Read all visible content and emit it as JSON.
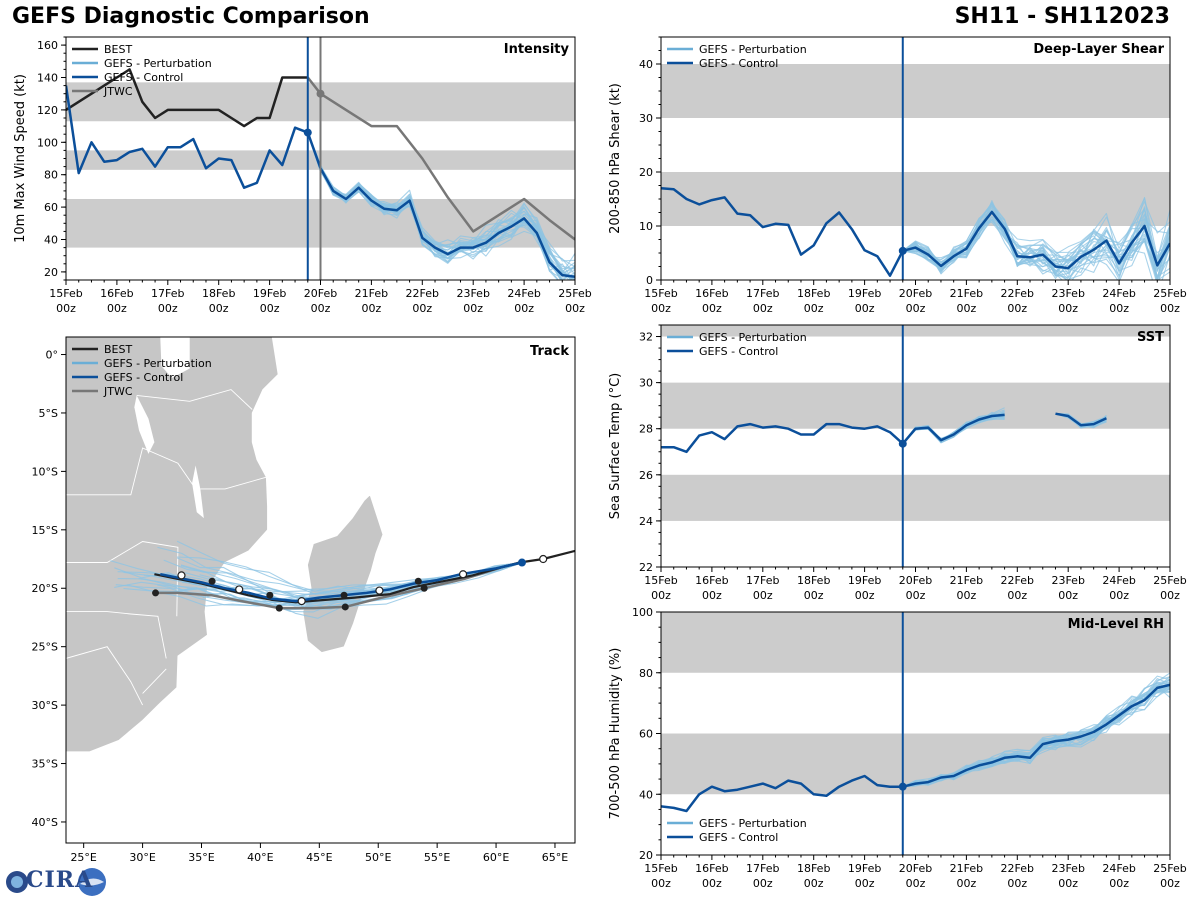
{
  "header": {
    "title_left": "GEFS Diagnostic Comparison",
    "title_right": "SH11 - SH112023"
  },
  "logo": {
    "text": "CIRA"
  },
  "colors": {
    "best": "#222222",
    "perturbation": "#8ec4e3",
    "perturbation_legend": "#6aaed6",
    "control": "#0b4f9a",
    "jtwc": "#777777",
    "band": "#cccccc",
    "land": "#c6c6c6"
  },
  "time_axis": {
    "ticks": [
      "15Feb",
      "16Feb",
      "17Feb",
      "18Feb",
      "19Feb",
      "20Feb",
      "21Feb",
      "22Feb",
      "23Feb",
      "24Feb",
      "25Feb"
    ],
    "sub": "00z",
    "init_day": 4.75,
    "jtwc_day": 5.0
  },
  "chart_data": [
    {
      "id": "intensity",
      "type": "line",
      "title": "Intensity",
      "ylabel": "10m Max Wind Speed (kt)",
      "xlim": [
        0,
        10
      ],
      "ylim": [
        15,
        165
      ],
      "yticks": [
        20,
        40,
        60,
        80,
        100,
        120,
        140,
        160
      ],
      "bands": [
        [
          35,
          65
        ],
        [
          83,
          95
        ],
        [
          113,
          137
        ]
      ],
      "legend": [
        "BEST",
        "GEFS - Perturbation",
        "GEFS - Control",
        "JTWC"
      ],
      "best": {
        "x": [
          0,
          0.25,
          0.5,
          0.75,
          1,
          1.25,
          1.5,
          1.75,
          2,
          2.25,
          2.5,
          2.75,
          3,
          3.25,
          3.5,
          3.75,
          4,
          4.25,
          4.5,
          4.75
        ],
        "y": [
          120,
          125,
          130,
          135,
          140,
          145,
          125,
          115,
          120,
          120,
          120,
          120,
          120,
          115,
          110,
          115,
          115,
          140,
          140,
          140
        ]
      },
      "control": {
        "x": [
          0,
          0.25,
          0.5,
          0.75,
          1,
          1.25,
          1.5,
          1.75,
          2,
          2.25,
          2.5,
          2.75,
          3,
          3.25,
          3.5,
          3.75,
          4,
          4.25,
          4.5,
          4.75
        ],
        "y": [
          135,
          81,
          100,
          88,
          89,
          94,
          96,
          85,
          97,
          97,
          102,
          84,
          90,
          89,
          72,
          75,
          95,
          86,
          109,
          106
        ]
      },
      "control_fc": {
        "x": [
          4.75,
          5,
          5.25,
          5.5,
          5.75,
          6,
          6.25,
          6.5,
          6.75,
          7,
          7.25,
          7.5,
          7.75,
          8,
          8.25,
          8.5,
          8.75,
          9,
          9.25,
          9.5,
          9.75,
          10
        ],
        "y": [
          106,
          84,
          70,
          65,
          72,
          64,
          59,
          58,
          64,
          41,
          35,
          31,
          35,
          35,
          38,
          44,
          48,
          53,
          44,
          26,
          18,
          17
        ]
      },
      "jtwc": {
        "x": [
          4.75,
          5,
          5.5,
          6,
          6.5,
          7,
          7.5,
          8,
          8.5,
          9,
          9.5,
          10
        ],
        "y": [
          140,
          130,
          120,
          110,
          110,
          90,
          66,
          45,
          55,
          65,
          52,
          40
        ]
      }
    },
    {
      "id": "shear",
      "type": "line",
      "title": "Deep-Layer Shear",
      "ylabel": "200-850 hPa Shear (kt)",
      "xlim": [
        0,
        10
      ],
      "ylim": [
        0,
        45
      ],
      "yticks": [
        0,
        10,
        20,
        30,
        40
      ],
      "bands": [
        [
          10,
          20
        ],
        [
          30,
          40
        ]
      ],
      "legend": [
        "GEFS - Perturbation",
        "GEFS - Control"
      ],
      "control": {
        "x": [
          0,
          0.25,
          0.5,
          0.75,
          1,
          1.25,
          1.5,
          1.75,
          2,
          2.25,
          2.5,
          2.75,
          3,
          3.25,
          3.5,
          3.75,
          4,
          4.25,
          4.5,
          4.75
        ],
        "y": [
          17,
          16.8,
          15,
          14,
          14.8,
          15.3,
          12.3,
          12,
          9.8,
          10.4,
          10.2,
          4.7,
          6.4,
          10.5,
          12.5,
          9.4,
          5.5,
          4.4,
          0.8,
          5.4
        ]
      },
      "control_fc": {
        "x": [
          4.75,
          5,
          5.25,
          5.5,
          5.75,
          6,
          6.25,
          6.5,
          6.75,
          7,
          7.25,
          7.5,
          7.75,
          8,
          8.25,
          8.5,
          8.75,
          9,
          9.25,
          9.5,
          9.75,
          10
        ],
        "y": [
          5.4,
          6,
          4.7,
          2.6,
          4.4,
          5.8,
          9.6,
          12.6,
          9.5,
          4.4,
          4.2,
          4.7,
          2.5,
          2.2,
          4.3,
          5.6,
          7.3,
          3.1,
          6.9,
          10,
          2.7,
          6.8
        ]
      }
    },
    {
      "id": "sst",
      "type": "line",
      "title": "SST",
      "ylabel": "Sea Surface Temp (°C)",
      "xlim": [
        0,
        10
      ],
      "ylim": [
        22,
        32.5
      ],
      "yticks": [
        22,
        24,
        26,
        28,
        30,
        32
      ],
      "bands": [
        [
          24,
          26
        ],
        [
          28,
          30
        ],
        [
          32,
          33
        ]
      ],
      "legend": [
        "GEFS - Perturbation",
        "GEFS - Control"
      ],
      "control": {
        "x": [
          0,
          0.25,
          0.5,
          0.75,
          1,
          1.25,
          1.5,
          1.75,
          2,
          2.25,
          2.5,
          2.75,
          3,
          3.25,
          3.5,
          3.75,
          4,
          4.25,
          4.5,
          4.75
        ],
        "y": [
          27.2,
          27.2,
          27.0,
          27.7,
          27.85,
          27.55,
          28.1,
          28.2,
          28.05,
          28.1,
          28.0,
          27.75,
          27.75,
          28.2,
          28.2,
          28.05,
          28.0,
          28.1,
          27.85,
          27.35
        ]
      },
      "control_fc": {
        "x": [
          4.75,
          5,
          5.25,
          5.5,
          5.75,
          6,
          6.25,
          6.5,
          6.75,
          7
        ],
        "y": [
          27.35,
          28.0,
          28.05,
          27.5,
          27.75,
          28.15,
          28.4,
          28.55,
          28.6,
          null
        ]
      },
      "control_fc2": {
        "x": [
          7.75,
          8,
          8.25,
          8.5,
          8.75,
          9,
          9.25
        ],
        "y": [
          28.65,
          28.55,
          28.15,
          28.2,
          28.45,
          null,
          null
        ]
      }
    },
    {
      "id": "rh",
      "type": "line",
      "title": "Mid-Level RH",
      "ylabel": "700-500 hPa Humidity (%)",
      "xlim": [
        0,
        10
      ],
      "ylim": [
        20,
        100
      ],
      "yticks": [
        20,
        40,
        60,
        80,
        100
      ],
      "bands": [
        [
          40,
          60
        ],
        [
          80,
          100
        ]
      ],
      "legend": [
        "GEFS - Perturbation",
        "GEFS - Control"
      ],
      "control": {
        "x": [
          0,
          0.25,
          0.5,
          0.75,
          1,
          1.25,
          1.5,
          1.75,
          2,
          2.25,
          2.5,
          2.75,
          3,
          3.25,
          3.5,
          3.75,
          4,
          4.25,
          4.5,
          4.75
        ],
        "y": [
          36,
          35.5,
          34.5,
          40,
          42.5,
          41,
          41.5,
          42.5,
          43.5,
          42,
          44.5,
          43.5,
          40,
          39.5,
          42.5,
          44.5,
          46,
          43,
          42.5,
          42.5
        ]
      },
      "control_fc": {
        "x": [
          4.75,
          5,
          5.25,
          5.5,
          5.75,
          6,
          6.25,
          6.5,
          6.75,
          7,
          7.25,
          7.5,
          7.75,
          8,
          8.25,
          8.5,
          8.75,
          9,
          9.25,
          9.5,
          9.75,
          10
        ],
        "y": [
          42.5,
          43.5,
          44,
          45.5,
          46,
          48,
          49.5,
          50.5,
          52,
          52.5,
          52,
          56.5,
          57.5,
          58,
          59,
          60.5,
          63,
          66,
          69,
          71,
          75,
          76
        ]
      }
    },
    {
      "id": "track",
      "type": "scatter",
      "title": "Track",
      "xlim": [
        23.5,
        66.7
      ],
      "ylim": [
        -41.8,
        1.5
      ],
      "xticks": [
        25,
        30,
        35,
        40,
        45,
        50,
        55,
        60,
        65
      ],
      "yticks": [
        0,
        -5,
        -10,
        -15,
        -20,
        -25,
        -30,
        -35,
        -40
      ],
      "xticklabels": [
        "25°E",
        "30°E",
        "35°E",
        "40°E",
        "45°E",
        "50°E",
        "55°E",
        "60°E",
        "65°E"
      ],
      "yticklabels": [
        "0°",
        "5°S",
        "10°S",
        "15°S",
        "20°S",
        "25°S",
        "30°S",
        "35°S",
        "40°S"
      ],
      "legend": [
        "BEST",
        "GEFS - Perturbation",
        "GEFS - Control",
        "JTWC"
      ],
      "best": {
        "lon": [
          66.7,
          64,
          62,
          60.5,
          58,
          55,
          53,
          51,
          48,
          45.5,
          43,
          41,
          39,
          37,
          35,
          33,
          31
        ],
        "lat": [
          -16.8,
          -17.5,
          -17.8,
          -18.2,
          -18.9,
          -19.5,
          -19.9,
          -20.5,
          -20.8,
          -21.0,
          -21.2,
          -21.0,
          -20.6,
          -20.1,
          -19.6,
          -19.2,
          -18.8
        ]
      },
      "control": {
        "lon": [
          62.2,
          60,
          57,
          55,
          53,
          51,
          49,
          47,
          45,
          43,
          41,
          39,
          37,
          35,
          33,
          31.5
        ],
        "lat": [
          -17.8,
          -18.3,
          -18.8,
          -19.3,
          -19.6,
          -20.1,
          -20.4,
          -20.6,
          -20.8,
          -21.1,
          -20.9,
          -20.4,
          -20.0,
          -19.5,
          -19.1,
          -18.8
        ]
      },
      "jtwc": {
        "lon": [
          62.2,
          60.5,
          57.3,
          53.9,
          50.3,
          47.2,
          44.5,
          41.6,
          38.4,
          35.9,
          33,
          31.1
        ],
        "lat": [
          -17.8,
          -18.2,
          -19.2,
          -20.0,
          -20.8,
          -21.6,
          -21.7,
          -21.7,
          -21.1,
          -20.6,
          -20.4,
          -20.4
        ]
      },
      "markers_best_filled": {
        "lon": [
          35.9,
          40.8,
          47.1,
          53.4
        ],
        "lat": [
          -19.4,
          -20.6,
          -20.6,
          -19.4
        ]
      },
      "markers_open": {
        "lon": [
          33.3,
          38.2,
          43.5,
          50.1,
          57.2,
          64.0
        ],
        "lat": [
          -18.9,
          -20.1,
          -21.1,
          -20.2,
          -18.8,
          -17.5
        ]
      }
    }
  ]
}
